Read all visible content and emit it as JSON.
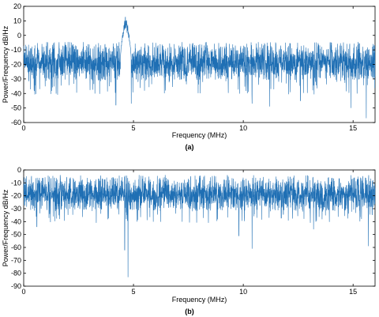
{
  "chart_data": [
    {
      "type": "line",
      "panel_label": "(a)",
      "xlabel": "Frequency (MHz)",
      "ylabel": "Power/Frequency dB/Hz",
      "xlim": [
        0,
        16
      ],
      "ylim": [
        -60,
        20
      ],
      "xticks": [
        0,
        5,
        10,
        15
      ],
      "yticks": [
        -60,
        -50,
        -40,
        -30,
        -20,
        -10,
        0,
        10,
        20
      ],
      "grid": false,
      "color": "#1f6fb4",
      "noise_band": {
        "floor_mean": -19,
        "upper": -10,
        "lower": -34
      },
      "peaks": [
        {
          "x": 4.65,
          "value": 16,
          "width": 0.25
        }
      ],
      "dips": [
        {
          "x": 4.2,
          "value": -48
        },
        {
          "x": 4.9,
          "value": -47
        },
        {
          "x": 10.4,
          "value": -47
        },
        {
          "x": 11.2,
          "value": -49
        },
        {
          "x": 12.6,
          "value": -45
        },
        {
          "x": 14.9,
          "value": -50
        },
        {
          "x": 15.6,
          "value": -57
        }
      ]
    },
    {
      "type": "line",
      "panel_label": "(b)",
      "xlabel": "Frequency (MHz)",
      "ylabel": "Power/Frequency dB/Hz",
      "xlim": [
        0,
        16
      ],
      "ylim": [
        -90,
        0
      ],
      "xticks": [
        0,
        5,
        10,
        15
      ],
      "yticks": [
        -90,
        -80,
        -70,
        -60,
        -50,
        -40,
        -30,
        -20,
        -10,
        0
      ],
      "grid": false,
      "color": "#1f6fb4",
      "noise_band": {
        "floor_mean": -19,
        "upper": -9,
        "lower": -34
      },
      "peaks": [],
      "dips": [
        {
          "x": 0.6,
          "value": -44
        },
        {
          "x": 4.6,
          "value": -62
        },
        {
          "x": 4.75,
          "value": -83
        },
        {
          "x": 9.8,
          "value": -51
        },
        {
          "x": 10.4,
          "value": -61
        },
        {
          "x": 13.2,
          "value": -46
        },
        {
          "x": 15.7,
          "value": -59
        }
      ]
    }
  ]
}
